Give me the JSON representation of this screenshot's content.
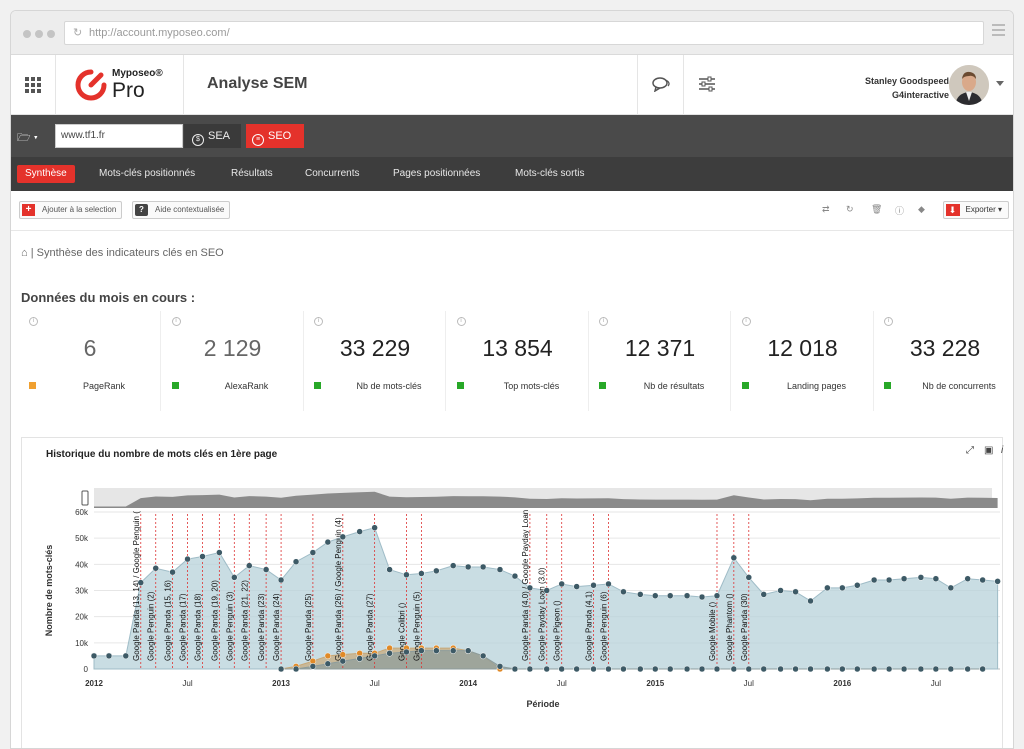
{
  "browser": {
    "url": "http://account.myposeo.com/"
  },
  "header": {
    "brand": "Myposeo®",
    "product": "Pro",
    "page_title": "Analyse SEM",
    "user_name": "Stanley Goodspeed",
    "user_company": "G4interactive"
  },
  "search": {
    "domain": "www.tf1.fr",
    "sea_label": "SEA",
    "seo_label": "SEO"
  },
  "tabs": [
    "Synthèse",
    "Mots-clés positionnés",
    "Résultats",
    "Concurrents",
    "Pages positionnées",
    "Mots-clés sortis"
  ],
  "toolbar": {
    "add_selection": "Ajouter à la selection",
    "context_help": "Aide contextualisée",
    "export": "Exporter"
  },
  "breadcrumb": "| Synthèse des indicateurs clés en SEO",
  "section_title": "Données du mois en cours :",
  "kpis": [
    {
      "value": "6",
      "label": "PageRank",
      "color": "#f0a030"
    },
    {
      "value": "2 129",
      "label": "AlexaRank",
      "color": "#28a828"
    },
    {
      "value": "33 229",
      "label": "Nb de mots-clés",
      "color": "#28a828"
    },
    {
      "value": "13 854",
      "label": "Top mots-clés",
      "color": "#28a828"
    },
    {
      "value": "12 371",
      "label": "Nb de résultats",
      "color": "#28a828"
    },
    {
      "value": "12 018",
      "label": "Landing pages",
      "color": "#28a828"
    },
    {
      "value": "33 228",
      "label": "Nb de concurrents",
      "color": "#28a828"
    }
  ],
  "chart_data": {
    "type": "area",
    "title": "Historique du nombre de mots clés en 1ère page",
    "xlabel": "Période",
    "ylabel": "Nombre de mots-clés",
    "ylim": [
      0,
      60000
    ],
    "yticks": [
      0,
      10000,
      20000,
      30000,
      40000,
      50000,
      60000
    ],
    "ytick_labels": [
      "0",
      "10k",
      "20k",
      "30k",
      "40k",
      "50k",
      "60k"
    ],
    "xlim": [
      2012.0,
      2016.8
    ],
    "xticks": [
      {
        "x": 2012.0,
        "label": "2012",
        "bold": true
      },
      {
        "x": 2012.5,
        "label": "Jul",
        "bold": false
      },
      {
        "x": 2013.0,
        "label": "2013",
        "bold": true
      },
      {
        "x": 2013.5,
        "label": "Jul",
        "bold": false
      },
      {
        "x": 2014.0,
        "label": "2014",
        "bold": true
      },
      {
        "x": 2014.5,
        "label": "Jul",
        "bold": false
      },
      {
        "x": 2015.0,
        "label": "2015",
        "bold": true
      },
      {
        "x": 2015.5,
        "label": "Jul",
        "bold": false
      },
      {
        "x": 2016.0,
        "label": "2016",
        "bold": true
      },
      {
        "x": 2016.5,
        "label": "Jul",
        "bold": false
      }
    ],
    "grid": true,
    "legend": "none",
    "series": [
      {
        "color": "#b7d1da",
        "marker": "#3d5a66",
        "points": [
          [
            2012.0,
            5000
          ],
          [
            2012.08,
            5000
          ],
          [
            2012.17,
            5000
          ],
          [
            2012.25,
            33000
          ],
          [
            2012.33,
            38500
          ],
          [
            2012.42,
            37000
          ],
          [
            2012.5,
            42000
          ],
          [
            2012.58,
            43000
          ],
          [
            2012.67,
            44500
          ],
          [
            2012.75,
            35000
          ],
          [
            2012.83,
            39500
          ],
          [
            2012.92,
            38000
          ],
          [
            2013.0,
            34000
          ],
          [
            2013.08,
            41000
          ],
          [
            2013.17,
            44500
          ],
          [
            2013.25,
            48500
          ],
          [
            2013.33,
            50500
          ],
          [
            2013.42,
            52500
          ],
          [
            2013.5,
            54000
          ],
          [
            2013.58,
            38000
          ],
          [
            2013.67,
            36000
          ],
          [
            2013.75,
            36500
          ],
          [
            2013.83,
            37500
          ],
          [
            2013.92,
            39500
          ],
          [
            2014.0,
            39000
          ],
          [
            2014.08,
            39000
          ],
          [
            2014.17,
            38000
          ],
          [
            2014.25,
            35500
          ],
          [
            2014.33,
            31000
          ],
          [
            2014.42,
            30000
          ],
          [
            2014.5,
            32500
          ],
          [
            2014.58,
            31500
          ],
          [
            2014.67,
            32000
          ],
          [
            2014.75,
            32500
          ],
          [
            2014.83,
            29500
          ],
          [
            2014.92,
            28500
          ],
          [
            2015.0,
            28000
          ],
          [
            2015.08,
            28000
          ],
          [
            2015.17,
            28000
          ],
          [
            2015.25,
            27500
          ],
          [
            2015.33,
            28000
          ],
          [
            2015.42,
            42500
          ],
          [
            2015.5,
            35000
          ],
          [
            2015.58,
            28500
          ],
          [
            2015.67,
            30000
          ],
          [
            2015.75,
            29500
          ],
          [
            2015.83,
            26000
          ],
          [
            2015.92,
            31000
          ],
          [
            2016.0,
            31000
          ],
          [
            2016.08,
            32000
          ],
          [
            2016.17,
            34000
          ],
          [
            2016.25,
            34000
          ],
          [
            2016.33,
            34500
          ],
          [
            2016.42,
            35000
          ],
          [
            2016.5,
            34500
          ],
          [
            2016.58,
            31000
          ],
          [
            2016.67,
            34500
          ],
          [
            2016.75,
            34000
          ],
          [
            2016.83,
            33500
          ]
        ]
      },
      {
        "color": "#c8a878",
        "marker": "#e08a28",
        "points": [
          [
            2013.0,
            0
          ],
          [
            2013.08,
            1000
          ],
          [
            2013.17,
            3000
          ],
          [
            2013.25,
            5000
          ],
          [
            2013.33,
            5500
          ],
          [
            2013.42,
            6000
          ],
          [
            2013.5,
            6000
          ],
          [
            2013.58,
            8000
          ],
          [
            2013.67,
            8000
          ],
          [
            2013.75,
            8000
          ],
          [
            2013.83,
            8000
          ],
          [
            2013.92,
            8000
          ],
          [
            2014.0,
            7000
          ],
          [
            2014.08,
            5000
          ],
          [
            2014.17,
            0
          ]
        ]
      },
      {
        "color": "#8c9c9c",
        "marker": "#3d5a66",
        "points": [
          [
            2013.0,
            0
          ],
          [
            2013.08,
            0
          ],
          [
            2013.17,
            1000
          ],
          [
            2013.25,
            2000
          ],
          [
            2013.33,
            3000
          ],
          [
            2013.42,
            4000
          ],
          [
            2013.5,
            5000
          ],
          [
            2013.58,
            6000
          ],
          [
            2013.67,
            6500
          ],
          [
            2013.75,
            7000
          ],
          [
            2013.83,
            7000
          ],
          [
            2013.92,
            7000
          ],
          [
            2014.0,
            7000
          ],
          [
            2014.08,
            5000
          ],
          [
            2014.17,
            1000
          ],
          [
            2014.25,
            0
          ],
          [
            2014.33,
            0
          ],
          [
            2014.42,
            0
          ],
          [
            2014.5,
            0
          ],
          [
            2014.58,
            0
          ],
          [
            2014.67,
            0
          ],
          [
            2014.75,
            0
          ],
          [
            2014.83,
            0
          ],
          [
            2014.92,
            0
          ],
          [
            2015.0,
            0
          ],
          [
            2015.08,
            0
          ],
          [
            2015.17,
            0
          ],
          [
            2015.25,
            0
          ],
          [
            2015.33,
            0
          ],
          [
            2015.42,
            0
          ],
          [
            2015.5,
            0
          ],
          [
            2015.58,
            0
          ],
          [
            2015.67,
            0
          ],
          [
            2015.75,
            0
          ],
          [
            2015.83,
            0
          ],
          [
            2015.92,
            0
          ],
          [
            2016.0,
            0
          ],
          [
            2016.08,
            0
          ],
          [
            2016.17,
            0
          ],
          [
            2016.25,
            0
          ],
          [
            2016.33,
            0
          ],
          [
            2016.42,
            0
          ],
          [
            2016.5,
            0
          ],
          [
            2016.58,
            0
          ],
          [
            2016.67,
            0
          ],
          [
            2016.75,
            0
          ]
        ]
      }
    ],
    "annotations": [
      {
        "x": 2012.25,
        "label": "Google Panda (13, 14) / Google Penguin ("
      },
      {
        "x": 2012.33,
        "label": "Google Penguin (2)"
      },
      {
        "x": 2012.42,
        "label": "Google Panda (15, 16)"
      },
      {
        "x": 2012.5,
        "label": "Google Panda (17)"
      },
      {
        "x": 2012.58,
        "label": "Google Panda (18)"
      },
      {
        "x": 2012.67,
        "label": "Google Panda (19, 20)"
      },
      {
        "x": 2012.75,
        "label": "Google Penguin (3)"
      },
      {
        "x": 2012.83,
        "label": "Google Panda (21, 22)"
      },
      {
        "x": 2012.92,
        "label": "Google Panda (23)"
      },
      {
        "x": 2013.0,
        "label": "Google Panda (24)"
      },
      {
        "x": 2013.17,
        "label": "Google Panda (25)"
      },
      {
        "x": 2013.33,
        "label": "Google Panda (26) / Google Penguin (4)"
      },
      {
        "x": 2013.5,
        "label": "Google Panda (27)"
      },
      {
        "x": 2013.67,
        "label": "Google Colibri ()"
      },
      {
        "x": 2013.75,
        "label": "Google Penguin (5)"
      },
      {
        "x": 2014.33,
        "label": "Google Panda (4.0) / Google Payday Loan"
      },
      {
        "x": 2014.42,
        "label": "Google Payday Loan (3.0)"
      },
      {
        "x": 2014.5,
        "label": "Google Pigeon ()"
      },
      {
        "x": 2014.67,
        "label": "Google Panda (4.1)"
      },
      {
        "x": 2014.75,
        "label": "Google Penguin (6)"
      },
      {
        "x": 2015.33,
        "label": "Google Mobile ()"
      },
      {
        "x": 2015.42,
        "label": "Google Phantom ()"
      },
      {
        "x": 2015.5,
        "label": "Google Panda (30)"
      }
    ]
  }
}
